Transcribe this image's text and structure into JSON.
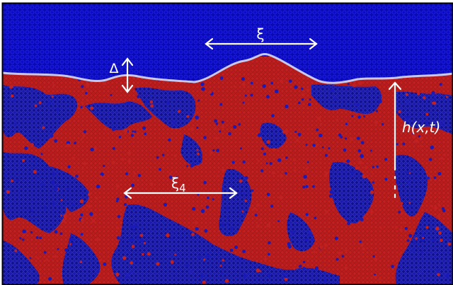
{
  "labels": {
    "xi": "ξ",
    "delta": "Δ",
    "xi4": "ξ",
    "xi4_subscript": "4",
    "height": "h(x,t)"
  },
  "colors": {
    "upper_region": "#0a0ab4",
    "upper_particle_edge": "#3a3aff",
    "red_phase": "#b81c1c",
    "blue_phase": "#1414a8",
    "interface": "#c8c8f0",
    "annotation": "#ffffff",
    "frame": "#000000"
  }
}
